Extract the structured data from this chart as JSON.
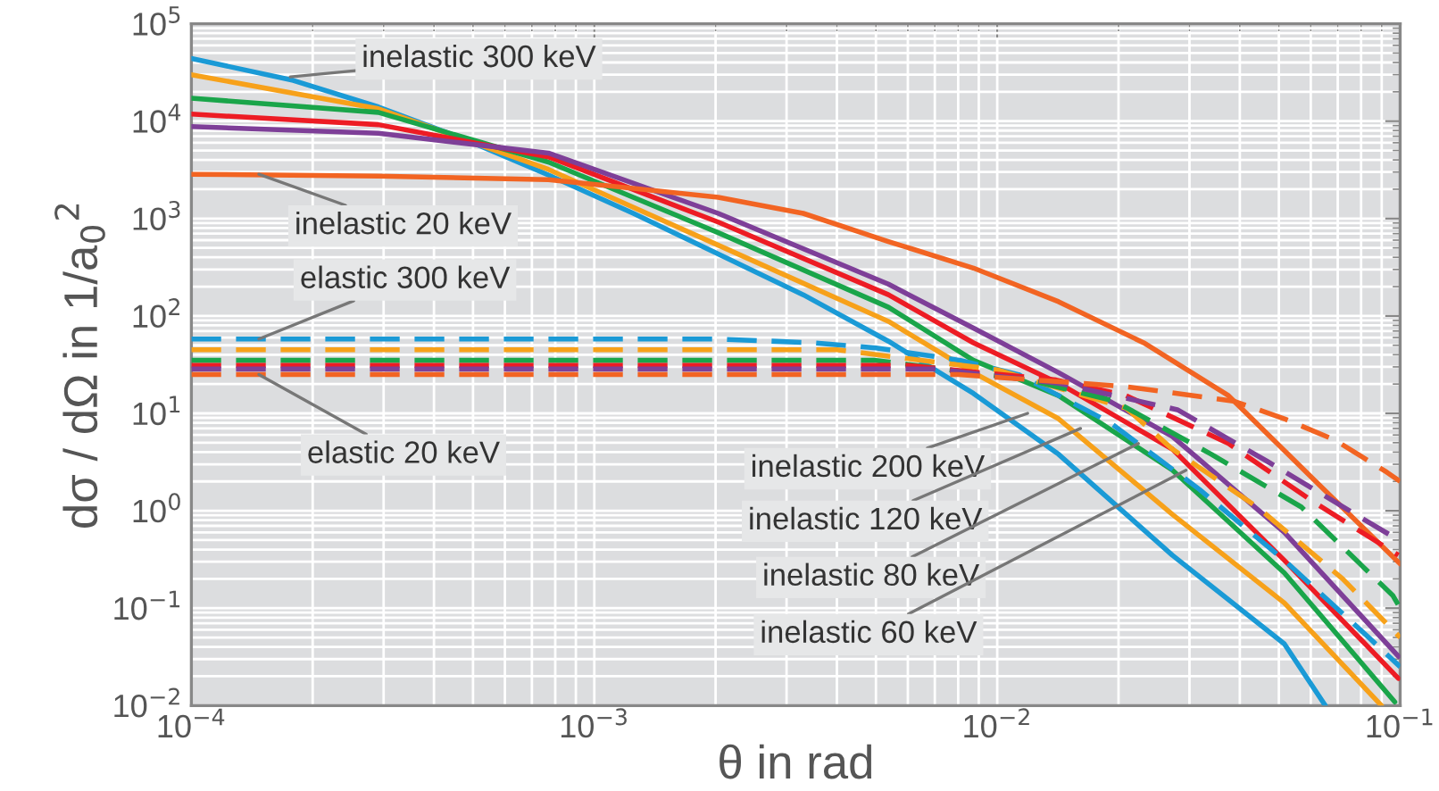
{
  "chart_data": {
    "type": "line",
    "xlabel": "θ in rad",
    "ylabel": "dσ / dΩ in 1/a$_{0}$$^{2}$",
    "log": "xy",
    "grid": true,
    "legend": false,
    "xlim": [
      0.0001,
      0.1
    ],
    "ylim": [
      0.01,
      100000
    ],
    "xticks": [
      {
        "value": 0.0001,
        "label": "10$^{−4}$"
      },
      {
        "value": 0.001,
        "label": "10$^{−3}$"
      },
      {
        "value": 0.01,
        "label": "10$^{−2}$"
      },
      {
        "value": 0.1,
        "label": "10$^{−1}$"
      }
    ],
    "yticks": [
      {
        "value": 0.01,
        "label": "10$^{−2}$"
      },
      {
        "value": 0.1,
        "label": "10$^{−1}$"
      },
      {
        "value": 1,
        "label": "10$^{0}$"
      },
      {
        "value": 10,
        "label": "10$^{1}$"
      },
      {
        "value": 100,
        "label": "10$^{2}$"
      },
      {
        "value": 1000,
        "label": "10$^{3}$"
      },
      {
        "value": 10000,
        "label": "10$^{4}$"
      },
      {
        "value": 100000,
        "label": "10$^{5}$"
      }
    ],
    "series": [
      {
        "color": "#1a9ad6",
        "line_style": "solid",
        "x": [
          0.0001,
          0.000179,
          0.000291,
          0.000473,
          0.000769,
          0.00125,
          0.00203,
          0.0033,
          0.00537,
          0.00873,
          0.0142,
          0.0272,
          0.0516,
          0.0652
        ],
        "values": [
          44000,
          26200,
          14000,
          6600,
          2800,
          1130,
          433,
          165,
          55,
          16,
          3.8,
          0.35,
          0.043,
          0.01
        ]
      },
      {
        "color": "#f7a11a",
        "line_style": "solid",
        "x": [
          0.0001,
          0.000291,
          0.000769,
          0.00203,
          0.00537,
          0.00873,
          0.0142,
          0.0272,
          0.0516,
          0.0899
        ],
        "values": [
          30000,
          13400,
          3200,
          533,
          88,
          26.2,
          8.8,
          0.92,
          0.113,
          0.01
        ]
      },
      {
        "color": "#1aa54a",
        "line_style": "solid",
        "x": [
          0.0001,
          0.000291,
          0.000769,
          0.00203,
          0.00537,
          0.00873,
          0.0142,
          0.0272,
          0.0516,
          0.097
        ],
        "values": [
          17200,
          12300,
          3800,
          716,
          123,
          35,
          15.2,
          2.62,
          0.23,
          0.0109
        ]
      },
      {
        "color": "#ed1c24",
        "line_style": "solid",
        "x": [
          0.0001,
          0.000291,
          0.000769,
          0.00203,
          0.00537,
          0.00873,
          0.0142,
          0.0272,
          0.0516,
          0.099
        ],
        "values": [
          11800,
          9200,
          4300,
          920,
          165,
          53,
          20.4,
          4.3,
          0.31,
          0.019
        ]
      },
      {
        "color": "#7e3f98",
        "line_style": "solid",
        "x": [
          0.0001,
          0.000291,
          0.000769,
          0.00203,
          0.00537,
          0.00873,
          0.0142,
          0.0272,
          0.0516,
          0.099
        ],
        "values": [
          8800,
          7500,
          4700,
          1130,
          212,
          75,
          26.2,
          5.8,
          0.6,
          0.032
        ]
      },
      {
        "color": "#f26422",
        "line_style": "solid",
        "x": [
          0.0001,
          0.000291,
          0.000769,
          0.00125,
          0.00203,
          0.0033,
          0.00537,
          0.00873,
          0.0142,
          0.0231,
          0.0375,
          0.061,
          0.1
        ],
        "values": [
          2850,
          2730,
          2510,
          2040,
          1650,
          1130,
          581,
          310,
          140,
          53,
          15.2,
          2.1,
          0.285
        ]
      },
      {
        "color": "#1a9ad6",
        "line_style": "dashed",
        "x": [
          0.0001,
          0.002,
          0.0035,
          0.005,
          0.0081,
          0.0113,
          0.019,
          0.0318,
          0.0516,
          0.084,
          0.1
        ],
        "values": [
          58,
          58,
          53,
          47,
          35,
          25,
          8.1,
          1.65,
          0.31,
          0.049,
          0.025
        ]
      },
      {
        "color": "#f7a11a",
        "line_style": "dashed",
        "x": [
          0.0001,
          0.004,
          0.01,
          0.0209,
          0.0272,
          0.0442,
          0.072,
          0.1
        ],
        "values": [
          45,
          45,
          28,
          11.3,
          4.3,
          1.09,
          0.2,
          0.05
        ]
      },
      {
        "color": "#1aa54a",
        "line_style": "dashed",
        "x": [
          0.0001,
          0.005,
          0.012,
          0.0195,
          0.034,
          0.0569,
          0.096,
          0.1
        ],
        "values": [
          35,
          35,
          22,
          13.4,
          3.8,
          1.09,
          0.134,
          0.1
        ]
      },
      {
        "color": "#ed1c24",
        "line_style": "dashed",
        "x": [
          0.0001,
          0.006,
          0.014,
          0.0209,
          0.0375,
          0.061,
          0.099
        ],
        "values": [
          31,
          31,
          22,
          15.2,
          4.9,
          1.23,
          0.35
        ]
      },
      {
        "color": "#7e3f98",
        "line_style": "dashed",
        "x": [
          0.0001,
          0.007,
          0.0142,
          0.028,
          0.0469,
          0.0815,
          0.1
        ],
        "values": [
          28.5,
          28.5,
          20.4,
          10.9,
          3.2,
          0.81,
          0.49
        ]
      },
      {
        "color": "#f26422",
        "line_style": "dashed",
        "x": [
          0.0001,
          0.008,
          0.0145,
          0.0209,
          0.0385,
          0.0516,
          0.069,
          0.0925,
          0.1
        ],
        "values": [
          25,
          25,
          21,
          18.8,
          13.4,
          8.8,
          5.3,
          2.5,
          2.0
        ]
      }
    ],
    "annotations": [
      {
        "text": "inelastic 300 keV",
        "x": 0.000176,
        "y": 28500
      },
      {
        "text": "inelastic 20 keV",
        "x": 0.000147,
        "y": 2850
      },
      {
        "text": "elastic 300 keV",
        "x": 0.000147,
        "y": 58
      },
      {
        "text": "elastic 20 keV",
        "x": 0.000147,
        "y": 25
      },
      {
        "text": "inelastic 200 keV",
        "x": 0.0119,
        "y": 10
      },
      {
        "text": "inelastic 120 keV",
        "x": 0.0161,
        "y": 7
      },
      {
        "text": "inelastic 80 keV",
        "x": 0.0224,
        "y": 4.9
      },
      {
        "text": "inelastic 60 keV",
        "x": 0.0294,
        "y": 2.6
      }
    ]
  }
}
